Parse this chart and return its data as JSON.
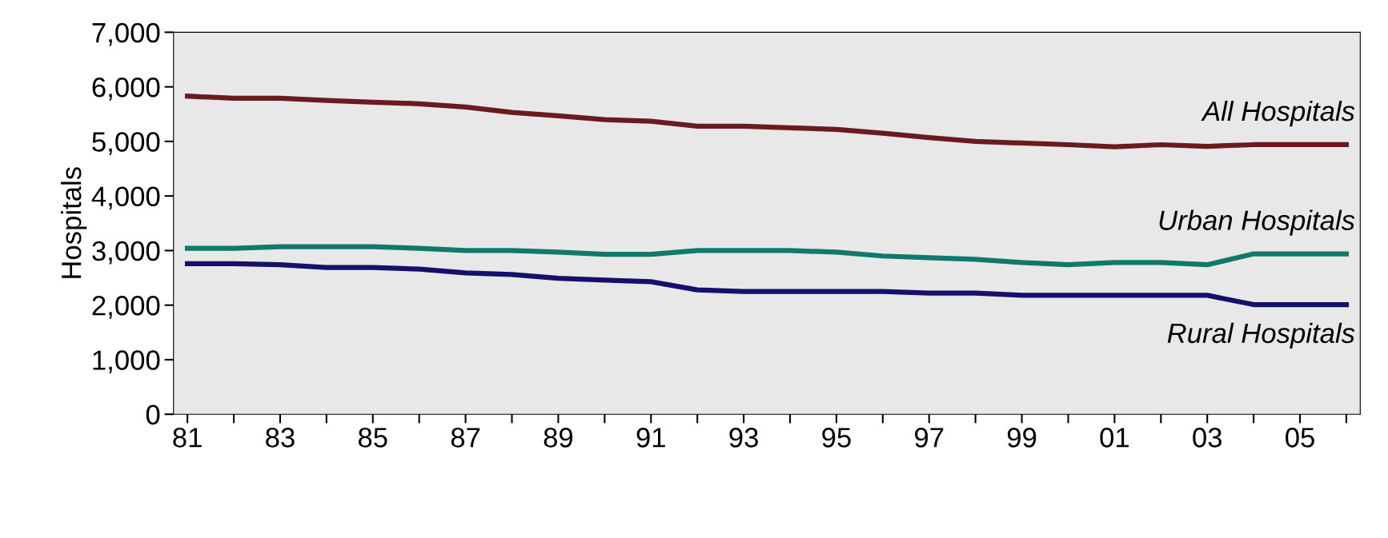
{
  "chart_data": {
    "type": "line",
    "ylabel": "Hospitals",
    "categories": [
      "81",
      null,
      "83",
      null,
      "85",
      null,
      "87",
      null,
      "89",
      null,
      "91",
      null,
      "93",
      null,
      "95",
      null,
      "97",
      null,
      "99",
      null,
      "01",
      null,
      "03",
      null,
      "05",
      null
    ],
    "series": [
      {
        "name": "All Hospitals",
        "color": "#6b1a1f",
        "values": [
          5830,
          5790,
          5790,
          5750,
          5720,
          5690,
          5630,
          5530,
          5470,
          5400,
          5370,
          5280,
          5280,
          5250,
          5220,
          5150,
          5070,
          5000,
          4970,
          4940,
          4900,
          4940,
          4910,
          4940,
          4940,
          4940
        ]
      },
      {
        "name": "Urban Hospitals",
        "color": "#11796b",
        "values": [
          3040,
          3040,
          3070,
          3070,
          3070,
          3040,
          3000,
          3000,
          2970,
          2930,
          2930,
          3000,
          3000,
          3000,
          2970,
          2900,
          2870,
          2840,
          2780,
          2740,
          2780,
          2780,
          2740,
          2940,
          2940,
          2940
        ]
      },
      {
        "name": "Rural Hospitals",
        "color": "#16106b",
        "values": [
          2760,
          2760,
          2740,
          2690,
          2690,
          2660,
          2590,
          2560,
          2490,
          2460,
          2430,
          2280,
          2250,
          2250,
          2250,
          2250,
          2220,
          2220,
          2180,
          2180,
          2180,
          2180,
          2180,
          2010,
          2010,
          2010
        ]
      }
    ],
    "ylim": [
      0,
      7000
    ],
    "yticks": [
      0,
      {
        "value": 1000,
        "label": "1,000"
      },
      {
        "value": 2000,
        "label": "2,000"
      },
      {
        "value": 3000,
        "label": "3,000"
      },
      {
        "value": 4000,
        "label": "4,000"
      },
      {
        "value": 5000,
        "label": "5,000"
      },
      {
        "value": 6000,
        "label": "6,000"
      },
      {
        "value": 7000,
        "label": "7,000"
      }
    ],
    "grid": false,
    "legend": false,
    "line_style": "solid",
    "marker": "none"
  }
}
